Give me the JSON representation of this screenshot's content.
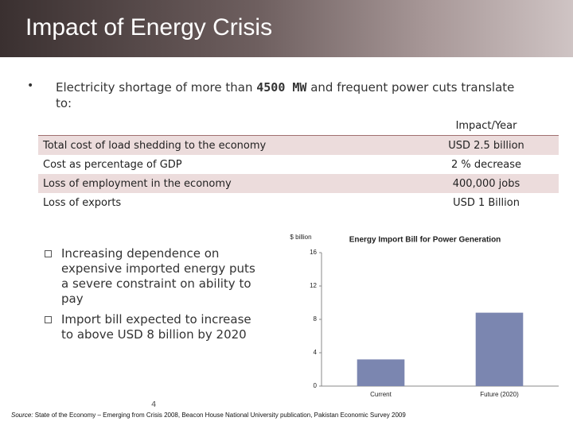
{
  "header": {
    "title": "Impact of Energy Crisis"
  },
  "intro": {
    "before": "Electricity shortage of more than ",
    "highlight": "4500 MW",
    "after": " and frequent power cuts translate to:"
  },
  "table": {
    "header": "Impact/Year",
    "rows": [
      [
        "Total cost of load shedding  to the economy",
        "USD 2.5 billion"
      ],
      [
        "Cost as percentage of GDP",
        "2 % decrease"
      ],
      [
        "Loss of employment in the economy",
        "400,000 jobs"
      ],
      [
        "Loss of exports",
        "USD 1 Billion"
      ]
    ]
  },
  "bullets": [
    "Increasing dependence on expensive imported energy puts a severe constraint on ability to pay",
    "Import bill expected to increase to above USD 8 billion by 2020"
  ],
  "chart_data": {
    "type": "bar",
    "title": "Energy Import Bill for Power Generation",
    "y_label": "$ billion",
    "categories": [
      "Current",
      "Future (2020)"
    ],
    "values": [
      3.2,
      8.8
    ],
    "color": "#7b86b0",
    "ylim": [
      0,
      16
    ],
    "yticks": [
      0,
      4,
      8,
      12,
      16
    ],
    "grid": false
  },
  "footer": {
    "source_label": "Source:",
    "source": " State of the Economy – Emerging from Crisis 2008, Beacon House National University publication, Pakistan Economic Survey 2009",
    "page": "4"
  }
}
